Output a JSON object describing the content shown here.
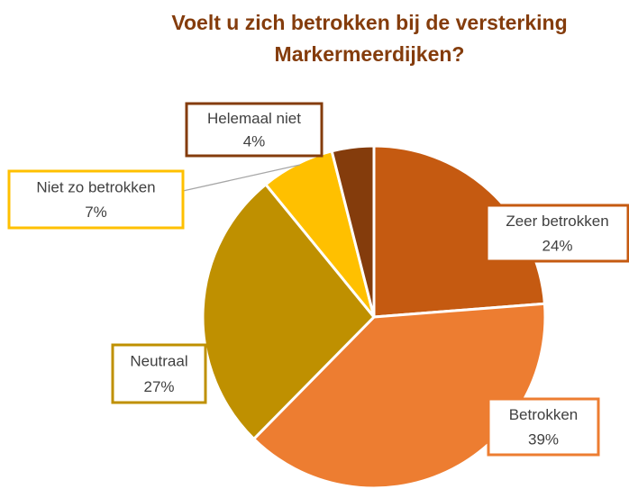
{
  "chart_data": {
    "type": "pie",
    "title": "Voelt u zich betrokken bij de versterking Markermeerdijken?",
    "categories": [
      "Zeer betrokken",
      "Betrokken",
      "Neutraal",
      "Niet zo betrokken",
      "Helemaal niet"
    ],
    "values": [
      24,
      39,
      27,
      7,
      4
    ],
    "value_labels": [
      "24%",
      "39%",
      "27%",
      "7%",
      "4%"
    ],
    "colors": [
      "#c55a11",
      "#ed7d31",
      "#bf9000",
      "#ffc000",
      "#843c0c"
    ]
  }
}
